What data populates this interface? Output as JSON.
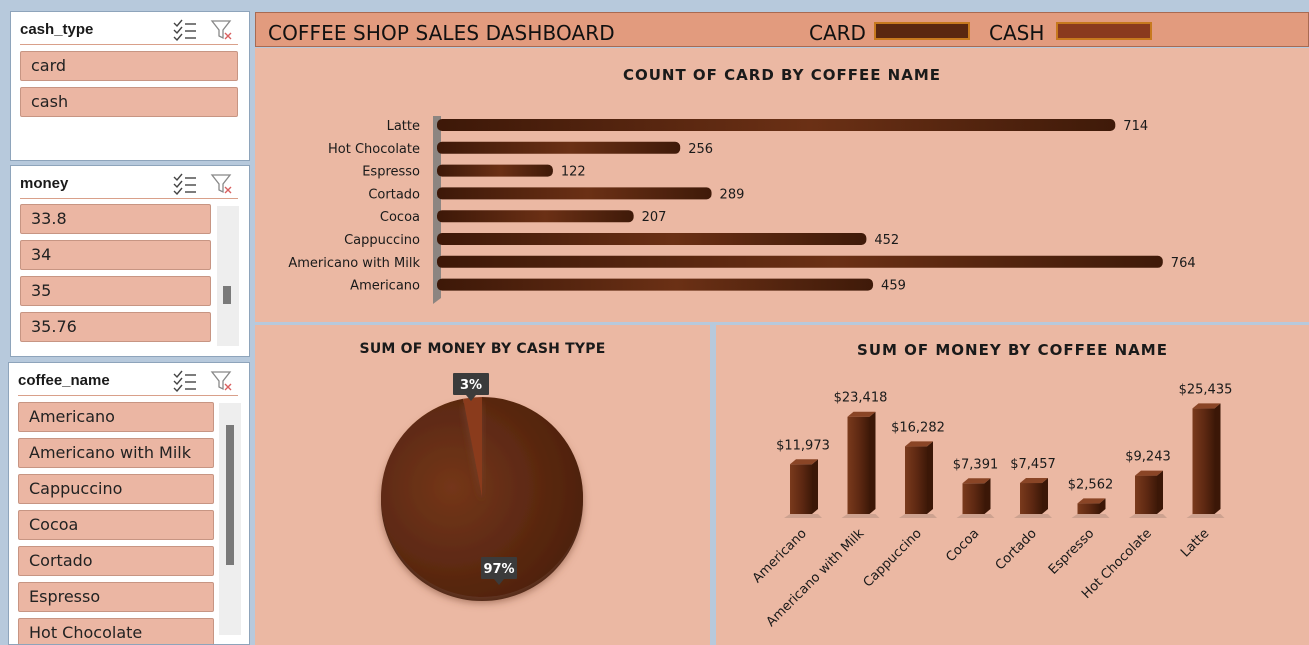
{
  "slicers": {
    "cash_type": {
      "title": "cash_type",
      "items": [
        "card",
        "cash"
      ]
    },
    "money": {
      "title": "money",
      "items": [
        "33.8",
        "34",
        "35",
        "35.76"
      ]
    },
    "coffee_name": {
      "title": "coffee_name",
      "items": [
        "Americano",
        "Americano with Milk",
        "Cappuccino",
        "Cocoa",
        "Cortado",
        "Espresso",
        "Hot Chocolate"
      ]
    },
    "icons": [
      "multi-select-icon",
      "clear-filter-icon"
    ]
  },
  "header": {
    "title": "COFFEE SHOP SALES DASHBOARD",
    "legend": [
      {
        "label": "CARD",
        "color": "#5a2710"
      },
      {
        "label": "CASH",
        "color": "#8a3a1e"
      }
    ]
  },
  "colors": {
    "background": "#b7c9dc",
    "panel": "#ebb8a3",
    "header": "#e29b7e",
    "bar": "#5a2a12",
    "slicer_item": "#ebb6a3"
  },
  "chart_data": [
    {
      "type": "bar",
      "orientation": "horizontal",
      "title": "COUNT OF CARD BY COFFEE NAME",
      "categories": [
        "Latte",
        "Hot Chocolate",
        "Espresso",
        "Cortado",
        "Cocoa",
        "Cappuccino",
        "Americano with Milk",
        "Americano"
      ],
      "values": [
        714,
        256,
        122,
        289,
        207,
        452,
        764,
        459
      ],
      "xlim": [
        0,
        800
      ]
    },
    {
      "type": "pie",
      "title": "SUM OF MONEY BY CASH TYPE",
      "categories": [
        "card",
        "cash"
      ],
      "values": [
        97,
        3
      ],
      "labels": [
        "97%",
        "3%"
      ],
      "colors": [
        "#5a2710",
        "#8a3a1e"
      ]
    },
    {
      "type": "bar",
      "orientation": "vertical",
      "title": "SUM OF MONEY BY COFFEE NAME",
      "categories": [
        "Americano",
        "Americano with Milk",
        "Cappuccino",
        "Cocoa",
        "Cortado",
        "Espresso",
        "Hot Chocolate",
        "Latte"
      ],
      "values": [
        11973,
        23418,
        16282,
        7391,
        7457,
        2562,
        9243,
        25435
      ],
      "labels": [
        "$11,973",
        "$23,418",
        "$16,282",
        "$7,391",
        "$7,457",
        "$2,562",
        "$9,243",
        "$25,435"
      ],
      "ylim": [
        0,
        26000
      ]
    }
  ]
}
